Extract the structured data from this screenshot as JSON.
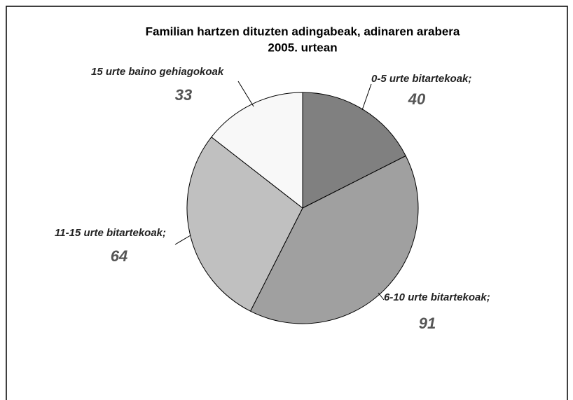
{
  "chart_data": {
    "type": "pie",
    "title": "Familian hartzen dituzten adingabeak, adinaren arabera",
    "subtitle": "2005. urtean",
    "categories": [
      "0-5 urte bitartekoak;",
      "6-10 urte bitartekoak;",
      "11-15 urte bitartekoak;",
      "15 urte baino gehiagokoak"
    ],
    "values": [
      40,
      91,
      64,
      33
    ],
    "colors": [
      "#808080",
      "#a0a0a0",
      "#c0c0c0",
      "#f8f8f8"
    ]
  }
}
